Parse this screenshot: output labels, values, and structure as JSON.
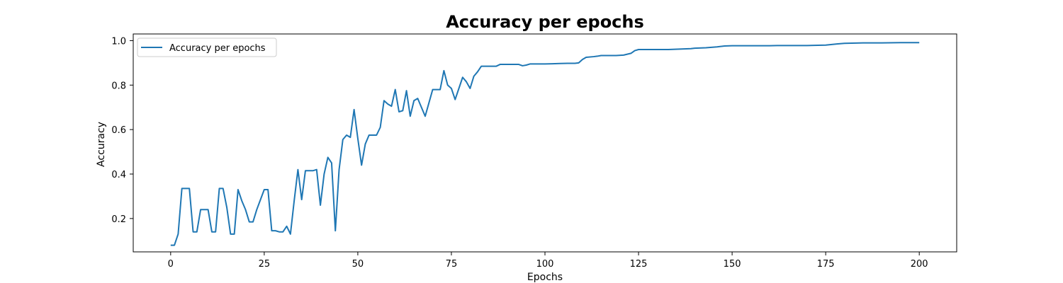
{
  "chart_data": {
    "type": "line",
    "title": "Accuracy per epochs",
    "xlabel": "Epochs",
    "ylabel": "Accuracy",
    "xlim": [
      -10,
      210
    ],
    "ylim": [
      0.05,
      1.03
    ],
    "xticks": [
      0,
      25,
      50,
      75,
      100,
      125,
      150,
      175,
      200
    ],
    "yticks": [
      0.2,
      0.4,
      0.6,
      0.8,
      1.0
    ],
    "ytick_labels": [
      "0.2",
      "0.4",
      "0.6",
      "0.8",
      "1.0"
    ],
    "grid": false,
    "legend_position": "top-left",
    "series": [
      {
        "name": "Accuracy per epochs",
        "color": "#1f77b4",
        "x": [
          0,
          1,
          2,
          3,
          4,
          5,
          6,
          7,
          8,
          9,
          10,
          11,
          12,
          13,
          14,
          15,
          16,
          17,
          18,
          19,
          20,
          21,
          22,
          23,
          24,
          25,
          26,
          27,
          28,
          29,
          30,
          31,
          32,
          33,
          34,
          35,
          36,
          37,
          38,
          39,
          40,
          41,
          42,
          43,
          44,
          45,
          46,
          47,
          48,
          49,
          50,
          51,
          52,
          53,
          54,
          55,
          56,
          57,
          58,
          59,
          60,
          61,
          62,
          63,
          64,
          65,
          66,
          67,
          68,
          69,
          70,
          71,
          72,
          73,
          74,
          75,
          76,
          77,
          78,
          79,
          80,
          81,
          82,
          83,
          84,
          85,
          86,
          87,
          88,
          90,
          92,
          93,
          94,
          95,
          96,
          98,
          100,
          102,
          104,
          106,
          108,
          109,
          110,
          111,
          113,
          114,
          115,
          117,
          119,
          121,
          123,
          124,
          125,
          127,
          130,
          133,
          136,
          139,
          140,
          143,
          146,
          148,
          150,
          155,
          160,
          162,
          165,
          170,
          175,
          178,
          180,
          185,
          190,
          195,
          200
        ],
        "values": [
          0.08,
          0.08,
          0.13,
          0.335,
          0.335,
          0.335,
          0.14,
          0.14,
          0.24,
          0.24,
          0.24,
          0.14,
          0.14,
          0.335,
          0.335,
          0.25,
          0.13,
          0.13,
          0.33,
          0.28,
          0.24,
          0.185,
          0.185,
          0.24,
          0.285,
          0.33,
          0.33,
          0.145,
          0.145,
          0.14,
          0.14,
          0.165,
          0.13,
          0.28,
          0.42,
          0.285,
          0.415,
          0.415,
          0.415,
          0.42,
          0.26,
          0.4,
          0.475,
          0.45,
          0.145,
          0.42,
          0.555,
          0.575,
          0.565,
          0.69,
          0.56,
          0.44,
          0.535,
          0.575,
          0.575,
          0.575,
          0.61,
          0.73,
          0.715,
          0.705,
          0.78,
          0.68,
          0.685,
          0.775,
          0.66,
          0.73,
          0.74,
          0.7,
          0.66,
          0.72,
          0.78,
          0.78,
          0.78,
          0.865,
          0.8,
          0.785,
          0.735,
          0.785,
          0.835,
          0.815,
          0.785,
          0.84,
          0.86,
          0.885,
          0.885,
          0.885,
          0.885,
          0.885,
          0.893,
          0.893,
          0.893,
          0.893,
          0.887,
          0.89,
          0.895,
          0.895,
          0.895,
          0.896,
          0.897,
          0.898,
          0.898,
          0.9,
          0.915,
          0.925,
          0.928,
          0.93,
          0.933,
          0.933,
          0.933,
          0.935,
          0.943,
          0.955,
          0.96,
          0.96,
          0.96,
          0.96,
          0.962,
          0.964,
          0.966,
          0.968,
          0.972,
          0.976,
          0.977,
          0.977,
          0.977,
          0.978,
          0.978,
          0.978,
          0.98,
          0.985,
          0.988,
          0.99,
          0.99,
          0.991,
          0.991
        ]
      }
    ]
  }
}
